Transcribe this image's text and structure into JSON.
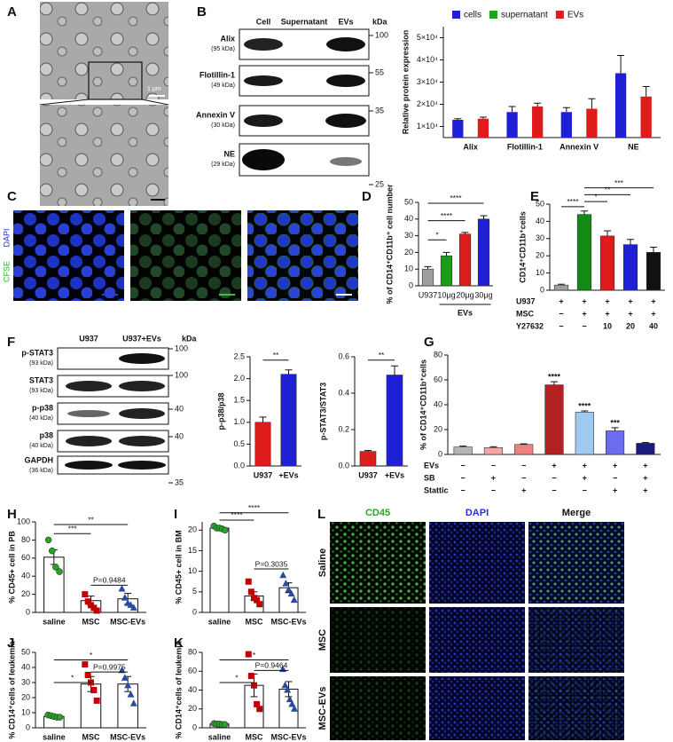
{
  "panel_labels": [
    "A",
    "B",
    "C",
    "D",
    "E",
    "F",
    "G",
    "H",
    "I",
    "J",
    "K",
    "L"
  ],
  "micrograph": {
    "scale_label": "1 μm"
  },
  "blot_b": {
    "lanes": [
      "Cell",
      "Supernatant",
      "EVs"
    ],
    "unit": "kDa",
    "rows": [
      {
        "name": "Alix",
        "size": "(95 kDa)"
      },
      {
        "name": "Flotillin-1",
        "size": "(49 kDa)"
      },
      {
        "name": "Annexin V",
        "size": "(30 kDa)"
      },
      {
        "name": "NE",
        "size": "(29 kDa)"
      }
    ],
    "markers": [
      100,
      55,
      35,
      25
    ]
  },
  "stains_c": [
    "DAPI",
    "CFSE"
  ],
  "blot_f": {
    "lanes": [
      "U937",
      "U937+EVs"
    ],
    "unit": "kDa",
    "rows": [
      {
        "name": "p-STAT3",
        "size": "(93 kDa)"
      },
      {
        "name": "STAT3",
        "size": "(93 kDa)"
      },
      {
        "name": "p-p38",
        "size": "(40 kDa)"
      },
      {
        "name": "p38",
        "size": "(40 kDa)"
      },
      {
        "name": "GAPDH",
        "size": "(36 kDa)"
      }
    ],
    "markers": [
      100,
      100,
      40,
      40,
      35
    ]
  },
  "panel_l": {
    "columns": [
      "CD45",
      "DAPI",
      "Merge"
    ],
    "rows": [
      "Saline",
      "MSC",
      "MSC-EVs"
    ]
  },
  "chart_data": [
    {
      "type": "bar",
      "y_label": "Relative protein expression",
      "categories": [
        "Alix",
        "Flotillin-1",
        "Annexin V",
        "NE"
      ],
      "series": [
        {
          "name": "cells",
          "color": "#1f1fd6",
          "values": [
            13000,
            16500,
            16500,
            34000
          ],
          "errors": [
            500,
            2500,
            2000,
            8000
          ]
        },
        {
          "name": "supernatant",
          "color": "#19a619",
          "values": [
            null,
            null,
            null,
            null
          ],
          "errors": [
            null,
            null,
            null,
            null
          ]
        },
        {
          "name": "EVs",
          "color": "#e01b1b",
          "values": [
            13500,
            19000,
            18000,
            23500
          ],
          "errors": [
            700,
            1500,
            4500,
            4500
          ]
        }
      ],
      "ylim": [
        5000,
        55000
      ],
      "yticks": [
        {
          "value": 10000,
          "label": "1×10⁴"
        },
        {
          "value": 20000,
          "label": "2×10⁴"
        },
        {
          "value": 30000,
          "label": "3×10⁴"
        },
        {
          "value": 40000,
          "label": "4×10⁴"
        },
        {
          "value": 50000,
          "label": "5×10⁴"
        }
      ],
      "legend": "top"
    },
    {
      "type": "bar",
      "y_label": "% of CD14⁺CD11b⁺ cell number",
      "categories": [
        "U937",
        "10μg",
        "20μg",
        "30μg"
      ],
      "colors": [
        "#9e9e9e",
        "#1a9e1a",
        "#e01b1b",
        "#1f1fd6"
      ],
      "values": [
        10,
        18,
        31,
        40
      ],
      "errors": [
        1.5,
        2,
        1,
        2
      ],
      "ylim": [
        0,
        50
      ],
      "yticks": [
        0,
        10,
        20,
        30,
        40,
        50
      ],
      "group_label": "EVs",
      "annotations": [
        "*",
        "****",
        "****"
      ]
    },
    {
      "type": "bar",
      "y_label": "CD14⁺CD11b⁺cells",
      "colors": [
        "#9e9e9e",
        "#138a13",
        "#e01b1b",
        "#1f1fd6",
        "#111111"
      ],
      "values": [
        3,
        44,
        31.5,
        26.5,
        22
      ],
      "errors": [
        0.5,
        2,
        3,
        3,
        3
      ],
      "ylim": [
        0,
        50
      ],
      "yticks": [
        0,
        10,
        20,
        30,
        40,
        50
      ],
      "conditions": [
        {
          "label": "U937",
          "marks": [
            "+",
            "+",
            "+",
            "+",
            "+"
          ]
        },
        {
          "label": "MSC",
          "marks": [
            "−",
            "+",
            "+",
            "+",
            "+"
          ]
        },
        {
          "label": "Y27632",
          "marks": [
            "−",
            "−",
            "10",
            "20",
            "40"
          ]
        }
      ],
      "annotations": [
        "****",
        "*",
        "**",
        "***"
      ]
    },
    {
      "type": "bar",
      "y_label": "p-p38/p38",
      "categories": [
        "U937",
        "+EVs"
      ],
      "colors": [
        "#e01b1b",
        "#1f1fd6"
      ],
      "values": [
        1.0,
        2.1
      ],
      "errors": [
        0.12,
        0.1
      ],
      "ylim": [
        0,
        2.5
      ],
      "yticks": [
        {
          "value": 0,
          "label": "0.0"
        },
        0.5,
        {
          "value": 1,
          "label": "1.0"
        },
        1.5,
        {
          "value": 2,
          "label": "2.0"
        },
        2.5
      ],
      "annotations": [
        "**"
      ]
    },
    {
      "type": "bar",
      "y_label": "p-STAT3/STAT3",
      "categories": [
        "U937",
        "+EVs"
      ],
      "colors": [
        "#e01b1b",
        "#1f1fd6"
      ],
      "values": [
        0.08,
        0.5
      ],
      "errors": [
        0.005,
        0.05
      ],
      "ylim": [
        0,
        0.6
      ],
      "yticks": [
        {
          "value": 0,
          "label": "0.0"
        },
        0.2,
        0.4,
        0.6
      ],
      "annotations": [
        "**"
      ]
    },
    {
      "type": "bar",
      "y_label": "% of CD14⁺CD11b⁺cells",
      "colors": [
        "#b5b5b5",
        "#f4a6a6",
        "#f08080",
        "#b22222",
        "#9ec9f0",
        "#6c6cf0",
        "#1a1a80"
      ],
      "values": [
        6,
        5.5,
        8,
        56,
        34,
        19,
        9
      ],
      "errors": [
        0.7,
        0.7,
        0.5,
        2.5,
        1,
        2.5,
        0.6
      ],
      "ylim": [
        0,
        80
      ],
      "yticks": [
        0,
        20,
        40,
        60,
        80
      ],
      "conditions": [
        {
          "label": "EVs",
          "marks": [
            "−",
            "−",
            "−",
            "+",
            "+",
            "+",
            "+"
          ]
        },
        {
          "label": "SB",
          "marks": [
            "−",
            "+",
            "−",
            "−",
            "+",
            "−",
            "+"
          ]
        },
        {
          "label": "Stattic",
          "marks": [
            "−",
            "−",
            "+",
            "−",
            "−",
            "+",
            "+"
          ]
        }
      ],
      "annotations": [
        "****",
        "****",
        "***"
      ]
    },
    {
      "type": "dotbar",
      "y_label": "% CD45+ cell in PB",
      "categories": [
        "saline",
        "MSC",
        "MSC-EVs"
      ],
      "colors": [
        "#2ca02c",
        "#c00000",
        "#2a4aa0"
      ],
      "values": [
        61,
        13,
        15
      ],
      "errors": [
        8,
        5,
        6
      ],
      "points": [
        [
          80,
          68,
          50,
          45
        ],
        [
          20,
          12,
          8,
          5,
          2
        ],
        [
          26,
          16,
          10,
          8,
          5
        ]
      ],
      "ylim": [
        0,
        100
      ],
      "yticks": [
        0,
        20,
        40,
        60,
        80,
        100
      ],
      "annotations": [
        "***",
        "**",
        "P=0.9484"
      ]
    },
    {
      "type": "dotbar",
      "y_label": "% CD45+ cell in BM",
      "categories": [
        "saline",
        "MSC",
        "MSC-EVs"
      ],
      "colors": [
        "#2ca02c",
        "#c00000",
        "#2a4aa0"
      ],
      "values": [
        20.5,
        4,
        6
      ],
      "errors": [
        0.3,
        1,
        1.2
      ],
      "points": [
        [
          21,
          20.5,
          20.5,
          20.3,
          20
        ],
        [
          7.5,
          5,
          3.5,
          3,
          2
        ],
        [
          9,
          7,
          5.5,
          4.5,
          3
        ]
      ],
      "ylim": [
        0,
        22
      ],
      "yticks": [
        0,
        5,
        10,
        15,
        20
      ],
      "annotations": [
        "****",
        "****",
        "P=0.3035"
      ]
    },
    {
      "type": "dotbar",
      "y_label": "% CD14⁺cells of leukemia",
      "categories": [
        "saline",
        "MSC",
        "MSC-EVs"
      ],
      "colors": [
        "#2ca02c",
        "#c00000",
        "#2a4aa0"
      ],
      "values": [
        7.5,
        29,
        29
      ],
      "errors": [
        0.7,
        5,
        5
      ],
      "points": [
        [
          8.5,
          8,
          7.5,
          7,
          7
        ],
        [
          42,
          35,
          30,
          25,
          18
        ],
        [
          38,
          33,
          28,
          22,
          16
        ]
      ],
      "ylim": [
        0,
        50
      ],
      "yticks": [
        0,
        10,
        20,
        30,
        40,
        50
      ],
      "annotations": [
        "*",
        "*",
        "P=0.9975"
      ]
    },
    {
      "type": "dotbar",
      "y_label": "% CD14⁺cells of leukemia",
      "categories": [
        "saline",
        "MSC",
        "MSC-EVs"
      ],
      "colors": [
        "#2ca02c",
        "#c00000",
        "#2a4aa0"
      ],
      "values": [
        4,
        45,
        41
      ],
      "errors": [
        0.5,
        12,
        8
      ],
      "points": [
        [
          4.5,
          4,
          4,
          3.5,
          3.5
        ],
        [
          78,
          55,
          45,
          25,
          20
        ],
        [
          62,
          45,
          40,
          30,
          25,
          20
        ]
      ],
      "ylim": [
        0,
        80
      ],
      "yticks": [
        0,
        20,
        40,
        60,
        80
      ],
      "annotations": [
        "*",
        "*",
        "P=0.9464"
      ]
    }
  ]
}
